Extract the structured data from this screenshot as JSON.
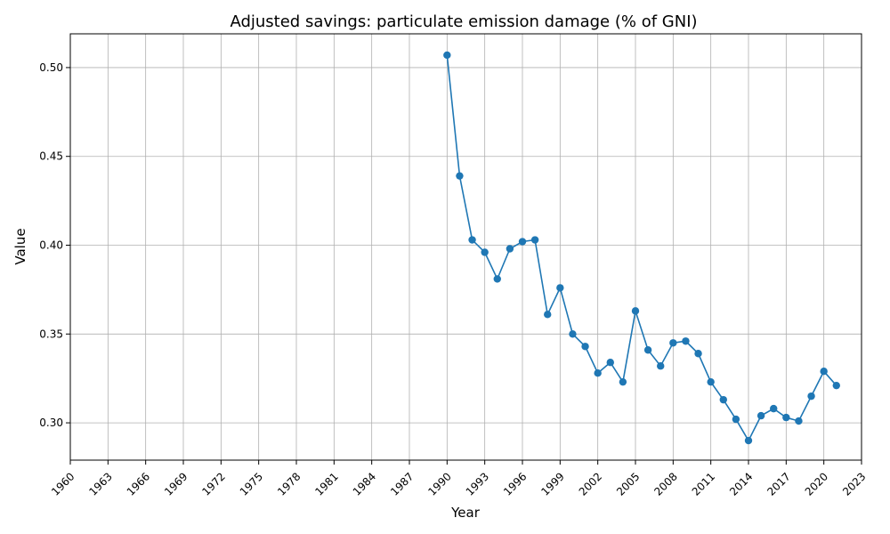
{
  "chart_data": {
    "type": "line",
    "title": "Adjusted savings: particulate emission damage (% of GNI)",
    "xlabel": "Year",
    "ylabel": "Value",
    "xlim": [
      1960,
      2023
    ],
    "ylim": [
      0.279,
      0.519
    ],
    "xticks": [
      1960,
      1963,
      1966,
      1969,
      1972,
      1975,
      1978,
      1981,
      1984,
      1987,
      1990,
      1993,
      1996,
      1999,
      2002,
      2005,
      2008,
      2011,
      2014,
      2017,
      2020,
      2023
    ],
    "yticks": [
      0.3,
      0.35,
      0.4,
      0.45,
      0.5
    ],
    "grid": true,
    "color": "#1f77b4",
    "series": [
      {
        "x": [
          1990,
          1991,
          1992,
          1993,
          1994,
          1995,
          1996,
          1997,
          1998,
          1999,
          2000,
          2001,
          2002,
          2003,
          2004,
          2005,
          2006,
          2007,
          2008,
          2009,
          2010,
          2011,
          2012,
          2013,
          2014,
          2015,
          2016,
          2017,
          2018,
          2019,
          2020,
          2021
        ],
        "values": [
          0.507,
          0.439,
          0.403,
          0.396,
          0.381,
          0.398,
          0.402,
          0.403,
          0.361,
          0.376,
          0.35,
          0.343,
          0.328,
          0.334,
          0.323,
          0.363,
          0.341,
          0.332,
          0.345,
          0.346,
          0.339,
          0.323,
          0.313,
          0.302,
          0.29,
          0.304,
          0.308,
          0.303,
          0.301,
          0.315,
          0.329,
          0.321
        ]
      }
    ]
  }
}
